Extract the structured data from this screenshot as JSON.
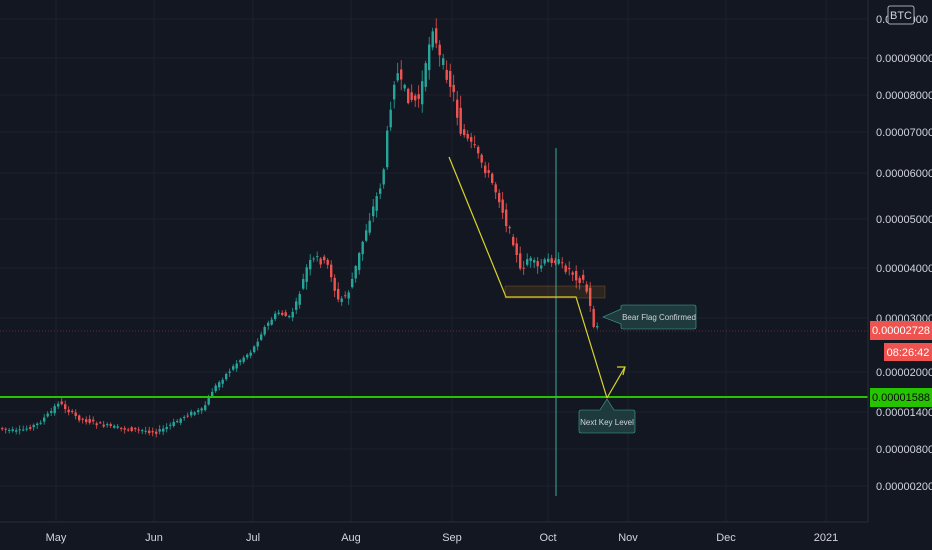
{
  "chart_data": {
    "type": "candlestick",
    "symbol_badge": "BTC",
    "y_axis": {
      "scale": "log",
      "tick_labels": [
        "0.0001000",
        "0.00009000",
        "0.00008000",
        "0.00007000",
        "0.00006000",
        "0.00005000",
        "0.00004000",
        "0.00003000",
        "0.00002000",
        "0.00001400",
        "0.00000800",
        "0.00000200"
      ]
    },
    "x_axis": {
      "tick_labels": [
        "May",
        "Jun",
        "Jul",
        "Aug",
        "Sep",
        "Oct",
        "Nov",
        "Dec",
        "2021"
      ]
    },
    "price_tags": [
      {
        "label": "0.00002728",
        "role": "last-price",
        "color": "#ef5350"
      },
      {
        "label": "08:26:42",
        "role": "countdown",
        "color": "#ef5350"
      },
      {
        "label": "0.00001588",
        "role": "key-level",
        "color": "#26c400"
      }
    ],
    "horizontal_level": {
      "value": "0.00001588",
      "color": "#26c400"
    },
    "annotations": [
      {
        "text": "Bear Flag Confirmed"
      },
      {
        "text": "Next Key Level"
      }
    ],
    "colors": {
      "up": "#26a69a",
      "down": "#ef5350",
      "drawing": "#d8d42a",
      "background": "#131722",
      "crosshair": "#3ea89d"
    },
    "candles_approx": {
      "note_free": true,
      "count": 170
    }
  }
}
